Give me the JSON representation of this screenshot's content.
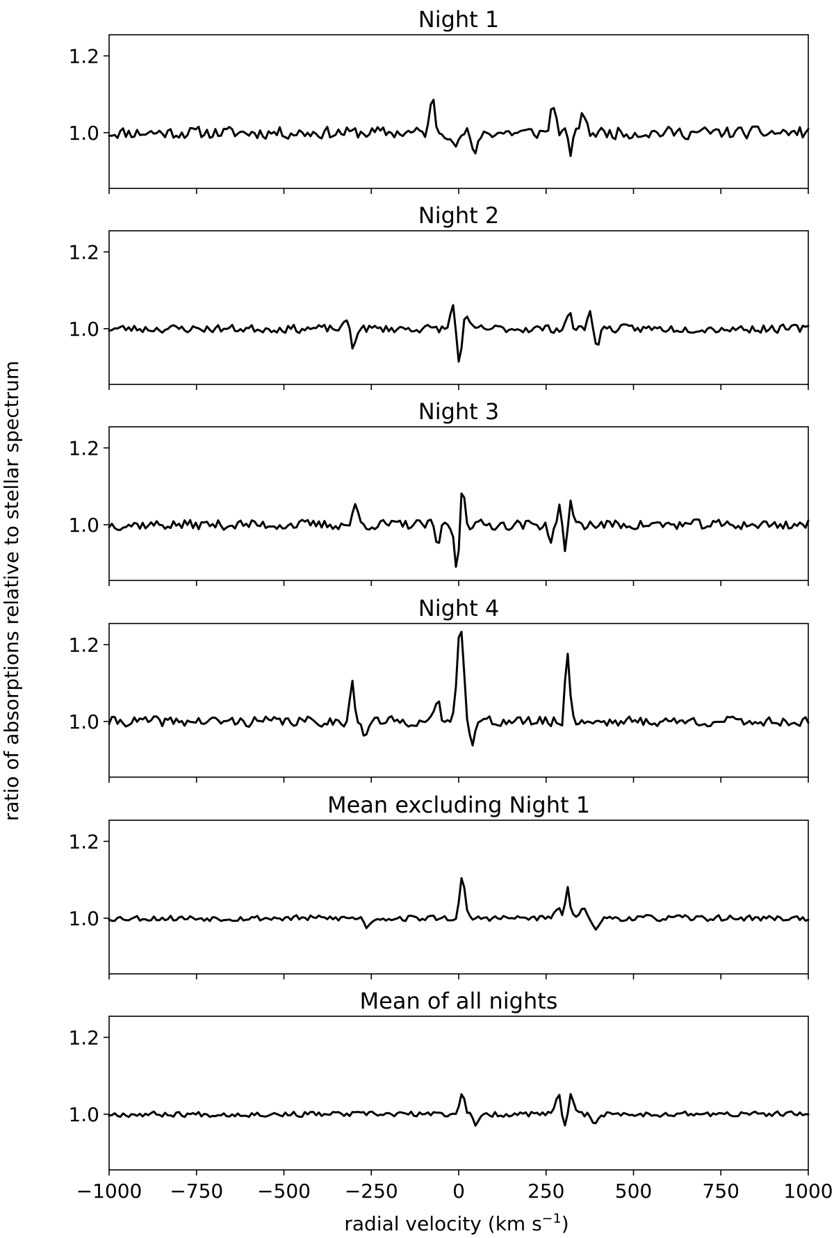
{
  "figure": {
    "ylabel": "ratio of absorptions relative to stellar spectrum",
    "xlabel": "radial velocity (km s",
    "xlabel_sup": "−1",
    "xlabel_close": ")"
  },
  "chart_data": [
    {
      "type": "line",
      "title": "Night 1",
      "xlim": [
        -1000,
        1000
      ],
      "ylim": [
        0.855,
        1.255
      ],
      "yticks": [
        1.0,
        1.2
      ],
      "ytick_labels": [
        "1.0",
        "1.2"
      ],
      "xticks": [
        -1000,
        -750,
        -500,
        -250,
        0,
        250,
        500,
        750,
        1000
      ],
      "xtick_labels": [],
      "features": [
        [
          -75,
          0.085
        ],
        [
          -5,
          -0.04
        ],
        [
          45,
          -0.07
        ],
        [
          270,
          0.08
        ],
        [
          320,
          -0.05
        ],
        [
          355,
          0.06
        ]
      ],
      "noise_amp": 0.018,
      "seed": 11
    },
    {
      "type": "line",
      "title": "Night 2",
      "xlim": [
        -1000,
        1000
      ],
      "ylim": [
        0.855,
        1.255
      ],
      "yticks": [
        1.0,
        1.2
      ],
      "ytick_labels": [
        "1.0",
        "1.2"
      ],
      "xticks": [
        -1000,
        -750,
        -500,
        -250,
        0,
        250,
        500,
        750,
        1000
      ],
      "xtick_labels": [],
      "features": [
        [
          -315,
          0.04
        ],
        [
          -305,
          -0.065
        ],
        [
          -15,
          0.07
        ],
        [
          0,
          -0.095
        ],
        [
          20,
          0.03
        ],
        [
          315,
          0.04
        ],
        [
          375,
          0.04
        ],
        [
          395,
          -0.04
        ]
      ],
      "noise_amp": 0.012,
      "seed": 23
    },
    {
      "type": "line",
      "title": "Night 3",
      "xlim": [
        -1000,
        1000
      ],
      "ylim": [
        0.855,
        1.255
      ],
      "yticks": [
        1.0,
        1.2
      ],
      "ytick_labels": [
        "1.0",
        "1.2"
      ],
      "xticks": [
        -1000,
        -750,
        -500,
        -250,
        0,
        250,
        500,
        750,
        1000
      ],
      "xtick_labels": [],
      "features": [
        [
          -5,
          -0.13
        ],
        [
          10,
          0.11
        ],
        [
          -60,
          -0.05
        ],
        [
          -295,
          0.05
        ],
        [
          290,
          0.06
        ],
        [
          305,
          -0.09
        ],
        [
          320,
          0.065
        ],
        [
          265,
          -0.04
        ]
      ],
      "noise_amp": 0.015,
      "seed": 37
    },
    {
      "type": "line",
      "title": "Night 4",
      "xlim": [
        -1000,
        1000
      ],
      "ylim": [
        0.855,
        1.255
      ],
      "yticks": [
        1.0,
        1.2
      ],
      "ytick_labels": [
        "1.0",
        "1.2"
      ],
      "xticks": [
        -1000,
        -750,
        -500,
        -250,
        0,
        250,
        500,
        750,
        1000
      ],
      "xtick_labels": [],
      "features": [
        [
          -305,
          0.1
        ],
        [
          0,
          0.17
        ],
        [
          10,
          0.165
        ],
        [
          40,
          -0.055
        ],
        [
          310,
          0.205
        ],
        [
          300,
          -0.04
        ],
        [
          -60,
          0.05
        ],
        [
          -270,
          -0.045
        ]
      ],
      "noise_amp": 0.015,
      "seed": 41
    },
    {
      "type": "line",
      "title": "Mean excluding Night 1",
      "xlim": [
        -1000,
        1000
      ],
      "ylim": [
        0.855,
        1.255
      ],
      "yticks": [
        1.0,
        1.2
      ],
      "ytick_labels": [
        "1.0",
        "1.2"
      ],
      "xticks": [
        -1000,
        -750,
        -500,
        -250,
        0,
        250,
        500,
        750,
        1000
      ],
      "xtick_labels": [],
      "features": [
        [
          10,
          0.105
        ],
        [
          310,
          0.09
        ],
        [
          300,
          -0.025
        ],
        [
          285,
          0.035
        ],
        [
          360,
          0.03
        ],
        [
          395,
          -0.035
        ],
        [
          -260,
          -0.025
        ]
      ],
      "noise_amp": 0.009,
      "seed": 53
    },
    {
      "type": "line",
      "title": "Mean of all nights",
      "xlim": [
        -1000,
        1000
      ],
      "ylim": [
        0.855,
        1.255
      ],
      "yticks": [
        1.0,
        1.2
      ],
      "ytick_labels": [
        "1.0",
        "1.2"
      ],
      "xticks": [
        -1000,
        -750,
        -500,
        -250,
        0,
        250,
        500,
        750,
        1000
      ],
      "xtick_labels": [
        "−1000",
        "−750",
        "−500",
        "−250",
        "0",
        "250",
        "500",
        "750",
        "1000"
      ],
      "features": [
        [
          10,
          0.06
        ],
        [
          50,
          -0.035
        ],
        [
          285,
          0.05
        ],
        [
          320,
          0.05
        ],
        [
          305,
          -0.03
        ],
        [
          390,
          -0.025
        ]
      ],
      "noise_amp": 0.008,
      "seed": 67
    }
  ]
}
